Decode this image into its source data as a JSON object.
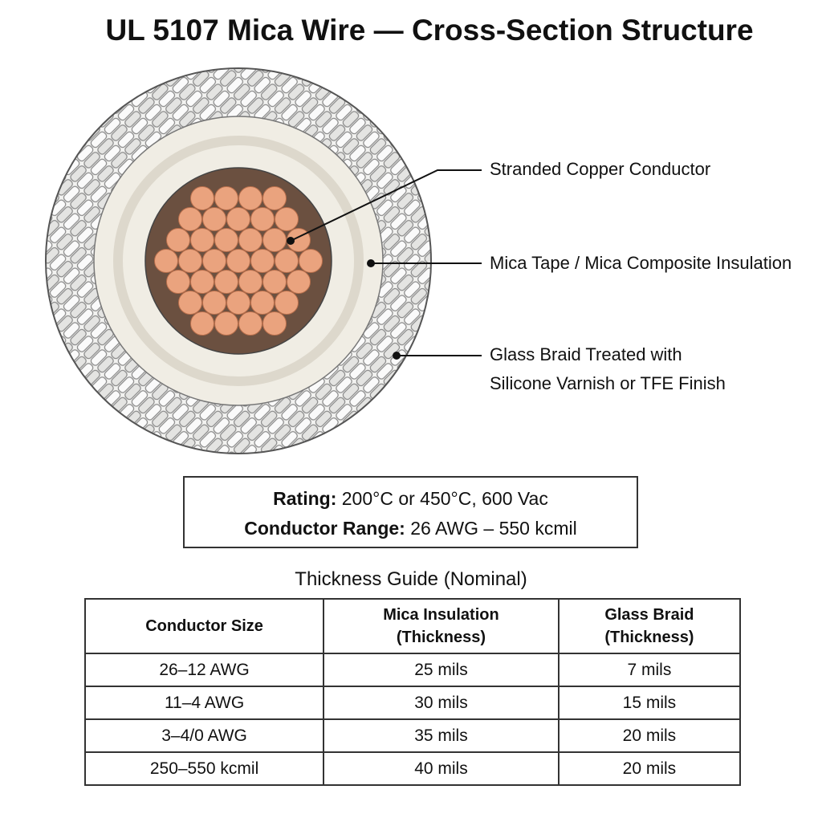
{
  "title": "UL 5107 Mica Wire — Cross-Section Structure",
  "callouts": [
    {
      "lines": [
        "Stranded Copper Conductor"
      ]
    },
    {
      "lines": [
        "Mica Tape / Mica Composite Insulation"
      ]
    },
    {
      "lines": [
        "Glass Braid Treated with",
        "Silicone Varnish or TFE Finish"
      ]
    }
  ],
  "rating": {
    "rating_label": "Rating:",
    "rating_value": "200°C or 450°C, 600 Vac",
    "range_label": "Conductor Range:",
    "range_value": "26 AWG – 550 kcmil"
  },
  "table": {
    "title": "Thickness Guide (Nominal)",
    "header": [
      [
        "Conductor Size"
      ],
      [
        "Mica Insulation",
        "(Thickness)"
      ],
      [
        "Glass Braid",
        "(Thickness)"
      ]
    ],
    "rows": [
      [
        "26–12 AWG",
        "25 mils",
        "7 mils"
      ],
      [
        "11–4 AWG",
        "30 mils",
        "15 mils"
      ],
      [
        "3–4/0 AWG",
        "35 mils",
        "20 mils"
      ],
      [
        "250–550 kcmil",
        "40 mils",
        "20 mils"
      ]
    ]
  }
}
